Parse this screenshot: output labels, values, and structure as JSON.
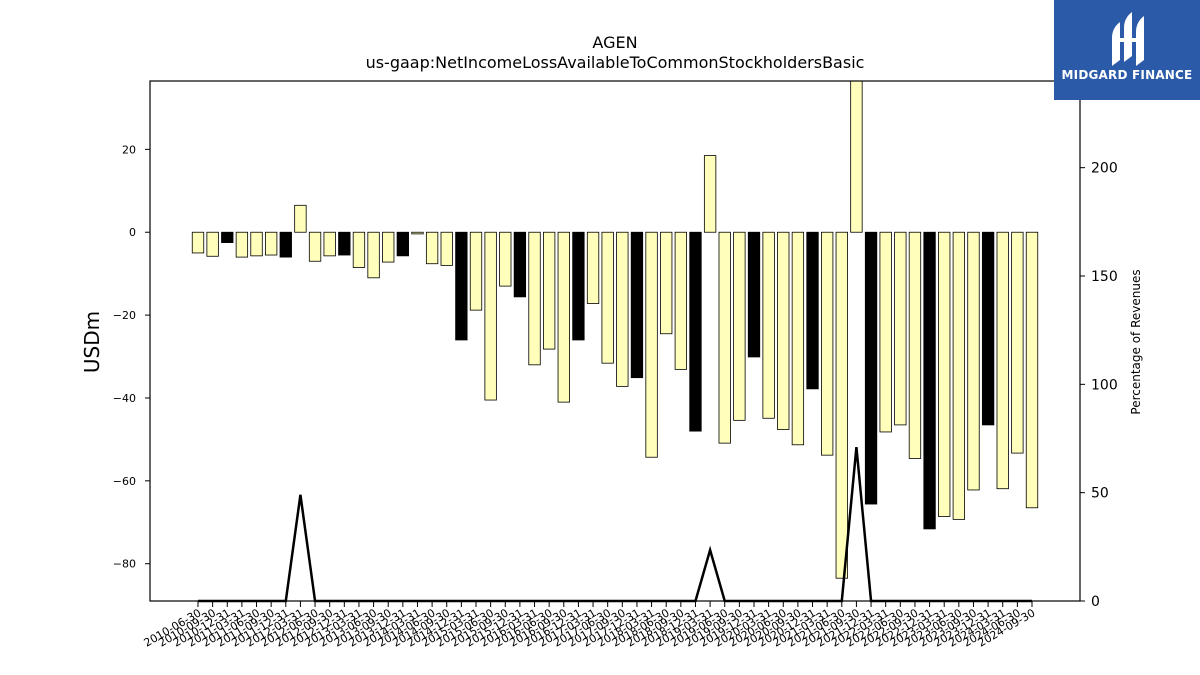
{
  "logo": {
    "text": "MIDGARD FINANCE",
    "color": "#2a5aa8"
  },
  "chart_data": {
    "type": "bar",
    "title": "AGEN",
    "subtitle": "us-gaap:NetIncomeLossAvailableToCommonStockholdersBasic",
    "ylabel": "USDm",
    "y2label": "Percentage of Revenues",
    "ylim": [
      -89,
      36.5
    ],
    "y2lim": [
      0,
      240
    ],
    "yticks": [
      20,
      0,
      -20,
      -40,
      -60,
      -80
    ],
    "y2ticks": [
      200,
      150,
      100,
      50,
      0
    ],
    "grid": false,
    "legend": "none",
    "colors": {
      "quarter": "#ffffbb",
      "annual": "#000000",
      "edge": "#000000",
      "line": "#000000"
    },
    "categories": [
      "2010-06-30",
      "2010-09-30",
      "2010-12-31",
      "2011-03-31",
      "2011-06-30",
      "2011-09-30",
      "2011-12-31",
      "2012-03-31",
      "2012-06-30",
      "2012-09-30",
      "2012-12-31",
      "2013-03-31",
      "2013-06-30",
      "2013-09-30",
      "2013-12-31",
      "2014-03-31",
      "2014-06-30",
      "2014-09-30",
      "2014-12-31",
      "2015-03-31",
      "2015-06-30",
      "2015-09-30",
      "2015-12-31",
      "2016-03-31",
      "2016-06-30",
      "2016-09-30",
      "2016-12-31",
      "2017-03-31",
      "2017-06-30",
      "2017-09-30",
      "2017-12-31",
      "2018-03-31",
      "2018-06-30",
      "2018-09-30",
      "2018-12-31",
      "2019-03-31",
      "2019-06-30",
      "2019-09-30",
      "2019-12-31",
      "2020-03-31",
      "2020-06-30",
      "2020-09-30",
      "2020-12-31",
      "2021-03-31",
      "2021-06-30",
      "2021-09-30",
      "2021-12-31",
      "2022-03-31",
      "2022-06-30",
      "2022-09-30",
      "2022-12-31",
      "2023-03-31",
      "2023-06-30",
      "2023-09-30",
      "2023-12-31",
      "2024-03-31",
      "2024-06-30",
      "2024-09-30"
    ],
    "xtick_labels": [
      "2010-06-30",
      "2010-09-30",
      "2010-12-31",
      "2011-03-31",
      "2011-06-30",
      "2011-09-30",
      "2011-12-31",
      "2012-03-31",
      "2012-06-30",
      "2012-09-30",
      "2012-12-31",
      "2013-03-31",
      "2013-06-30",
      "2013-09-30",
      "2013-12-31",
      "2014-03-31",
      "2014-06-30",
      "2014-09-30",
      "2014-12-31",
      "2015-03-31",
      "2015-06-30",
      "2015-09-30",
      "2015-12-31",
      "2016-03-31",
      "2016-06-30",
      "2016-09-30",
      "2016-12-31",
      "2017-03-31",
      "2017-06-30",
      "2017-09-30",
      "2017-12-31",
      "2018-03-31",
      "2018-06-30",
      "2018-09-30",
      "2018-12-31",
      "2019-03-31",
      "2019-06-30",
      "2019-09-30",
      "2019-12-31",
      "2020-03-31",
      "2020-06-30",
      "2020-09-30",
      "2020-12-31",
      "2021-03-31",
      "2021-06-30",
      "2021-09-30",
      "2021-12-31",
      "2022-03-31",
      "2022-06-30",
      "2022-09-30",
      "2022-12-31",
      "2023-03-31",
      "2023-06-30",
      "2023-09-30",
      "2023-12-31",
      "2024-03-31",
      "2024-06-30",
      "2024-09-30"
    ],
    "values": [
      -5,
      -5.8,
      -2.5,
      -6,
      -5.7,
      -5.5,
      -6,
      6.5,
      -7,
      -5.7,
      -5.5,
      -8.5,
      -11,
      -7.2,
      -5.7,
      -0.4,
      -7.6,
      -8,
      -26,
      -18.8,
      -40.5,
      -13,
      -15.6,
      -32,
      -28.2,
      -41,
      -26,
      -17.2,
      -31.6,
      -37.2,
      -35.1,
      -54.3,
      -24.5,
      -33.1,
      -48,
      18.5,
      -50.9,
      -45.4,
      -30.1,
      -44.9,
      -47.6,
      -51.3,
      -37.8,
      -53.8,
      -83.5,
      36.5,
      -65.6,
      -48.2,
      -46.5,
      -54.6,
      -71.6,
      -68.6,
      -69.3,
      -62.2,
      -46.5,
      -61.9,
      -53.3,
      -66.5
    ],
    "annual": [
      false,
      false,
      true,
      false,
      false,
      false,
      true,
      false,
      false,
      false,
      true,
      false,
      false,
      false,
      true,
      false,
      false,
      false,
      true,
      false,
      false,
      false,
      true,
      false,
      false,
      false,
      true,
      false,
      false,
      false,
      true,
      false,
      false,
      false,
      true,
      false,
      false,
      false,
      true,
      false,
      false,
      false,
      true,
      false,
      false,
      false,
      true,
      false,
      false,
      false,
      true,
      false,
      false,
      false,
      true,
      false,
      false,
      false
    ],
    "pct_revenues": [
      0,
      0,
      0,
      0,
      0,
      0,
      0,
      49,
      0,
      0,
      0,
      0,
      0,
      0,
      0,
      0,
      0,
      0,
      0,
      0,
      0,
      0,
      0,
      0,
      0,
      0,
      0,
      0,
      0,
      0,
      0,
      0,
      0,
      0,
      0,
      23.5,
      0,
      0,
      0,
      0,
      0,
      0,
      0,
      0,
      0,
      71,
      0,
      0,
      0,
      0,
      0,
      0,
      0,
      0,
      0,
      0,
      0,
      0
    ]
  }
}
